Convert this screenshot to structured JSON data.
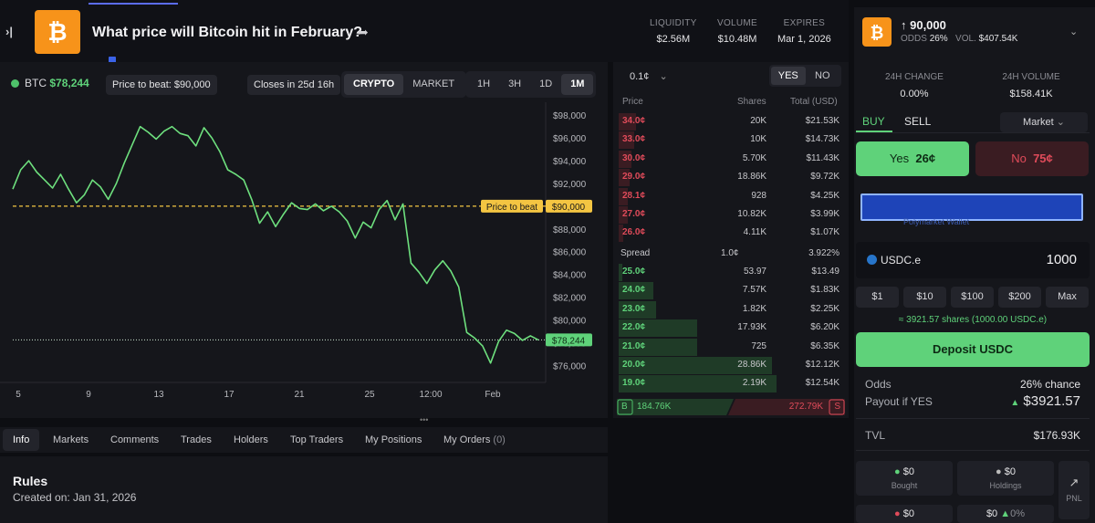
{
  "header": {
    "title": "What price will Bitcoin hit in February?",
    "stats": [
      {
        "label": "LIQUIDITY",
        "value": "$2.56M"
      },
      {
        "label": "VOLUME",
        "value": "$10.48M"
      },
      {
        "label": "EXPIRES",
        "value": "Mar 1, 2026"
      }
    ]
  },
  "chart_header": {
    "asset": "BTC",
    "price": "$78,244",
    "price_to_beat": "Price to beat: $90,000",
    "closes": "Closes in 25d 16h",
    "tabs": [
      "CRYPTO",
      "MARKET"
    ],
    "active_tab": "CRYPTO",
    "ranges": [
      "1H",
      "3H",
      "1D",
      "1M"
    ],
    "active_range": "1M"
  },
  "chart_data": {
    "type": "line",
    "x_labels": [
      "5",
      "9",
      "13",
      "17",
      "21",
      "25",
      "12:00",
      "Feb"
    ],
    "y_ticks": [
      "$98,000",
      "$96,000",
      "$94,000",
      "$92,000",
      "$90,000",
      "$88,000",
      "$86,000",
      "$84,000",
      "$82,000",
      "$80,000",
      "$78,000",
      "$76,000"
    ],
    "ylim": [
      74500,
      98500
    ],
    "reference": {
      "label": "Price to beat",
      "value": 90000,
      "value_label": "$90,000"
    },
    "current": {
      "value": 78244,
      "value_label": "$78,244"
    },
    "series": [
      {
        "values": [
          91500,
          93200,
          94000,
          93000,
          92300,
          91600,
          92800,
          91500,
          90300,
          91000,
          92300,
          91700,
          90600,
          92000,
          93800,
          95400,
          97000,
          96500,
          95900,
          96600,
          97000,
          96400,
          96200,
          95300,
          96900,
          96000,
          94800,
          93200,
          92800,
          92300,
          90600,
          88500,
          89500,
          88200,
          89300,
          90300,
          89800,
          89700,
          90200,
          89600,
          90000,
          89500,
          88700,
          87200,
          88600,
          88100,
          89700,
          90500,
          88800,
          90200,
          85000,
          84200,
          83200,
          84400,
          85200,
          84300,
          82900,
          78900,
          78400,
          77700,
          76200,
          78100,
          79100,
          78800,
          78200,
          78600,
          78244
        ]
      }
    ],
    "colors": {
      "line": "#6ee07e",
      "ref": "#f4c542",
      "current": "#5fd27a"
    }
  },
  "orderbook": {
    "tick": "0.1¢",
    "sides": [
      "YES",
      "NO"
    ],
    "active_side": "YES",
    "headers": [
      "Price",
      "Shares",
      "Total (USD)"
    ],
    "asks": [
      {
        "p": "34.0¢",
        "s": "20K",
        "t": "$21.53K",
        "d": 0.08
      },
      {
        "p": "33.0¢",
        "s": "10K",
        "t": "$14.73K",
        "d": 0.07
      },
      {
        "p": "30.0¢",
        "s": "5.70K",
        "t": "$11.43K",
        "d": 0.06
      },
      {
        "p": "29.0¢",
        "s": "18.86K",
        "t": "$9.72K",
        "d": 0.05
      },
      {
        "p": "28.1¢",
        "s": "928",
        "t": "$4.25K",
        "d": 0.04
      },
      {
        "p": "27.0¢",
        "s": "10.82K",
        "t": "$3.99K",
        "d": 0.04
      },
      {
        "p": "26.0¢",
        "s": "4.11K",
        "t": "$1.07K",
        "d": 0.02
      }
    ],
    "spread": {
      "label": "Spread",
      "value": "1.0¢",
      "pct": "3.922%"
    },
    "bids": [
      {
        "p": "25.0¢",
        "s": "53.97",
        "t": "$13.49",
        "d": 0.01
      },
      {
        "p": "24.0¢",
        "s": "7.57K",
        "t": "$1.83K",
        "d": 0.16
      },
      {
        "p": "23.0¢",
        "s": "1.82K",
        "t": "$2.25K",
        "d": 0.17
      },
      {
        "p": "22.0¢",
        "s": "17.93K",
        "t": "$6.20K",
        "d": 0.36
      },
      {
        "p": "21.0¢",
        "s": "725",
        "t": "$6.35K",
        "d": 0.36
      },
      {
        "p": "20.0¢",
        "s": "28.86K",
        "t": "$12.12K",
        "d": 0.7
      },
      {
        "p": "19.0¢",
        "s": "2.19K",
        "t": "$12.54K",
        "d": 0.72
      }
    ],
    "buy_total": "184.76K",
    "sell_total": "272.79K",
    "b": "B",
    "s": "S"
  },
  "tabs": [
    "Info",
    "Markets",
    "Comments",
    "Trades",
    "Holders",
    "Top Traders",
    "My Positions",
    "My Orders"
  ],
  "orders_count": "(0)",
  "rules": {
    "title": "Rules",
    "created": "Created on: Jan 31, 2026"
  },
  "trade": {
    "target": "↑ 90,000",
    "odds_label": "ODDS",
    "odds": "26%",
    "vol_label": "VOL.",
    "vol": "$407.54K",
    "change_label": "24H CHANGE",
    "change": "0.00%",
    "volume24_label": "24H VOLUME",
    "volume24": "$158.41K",
    "buy": "BUY",
    "sell": "SELL",
    "order_type": "Market",
    "yes_label": "Yes",
    "yes_price": "26¢",
    "no_label": "No",
    "no_price": "75¢",
    "wallet_label": "Polymarket Wallet",
    "currency": "USDC.e",
    "amount": "1000",
    "quick": [
      "$1",
      "$10",
      "$100",
      "$200",
      "Max"
    ],
    "shares_note": "≈ 3921.57 shares (1000.00 USDC.e)",
    "deposit": "Deposit USDC",
    "odds_row": "Odds",
    "odds_value": "26% chance",
    "payout_label": "Payout if YES",
    "payout": "$3921.57",
    "tvl_label": "TVL",
    "tvl": "$176.93K",
    "bought": "$0",
    "bought_label": "Bought",
    "holdings": "$0",
    "holdings_label": "Holdings",
    "pnl_label": "PNL",
    "row2a": "$0",
    "row2b": "$0",
    "row2c": "0%"
  }
}
